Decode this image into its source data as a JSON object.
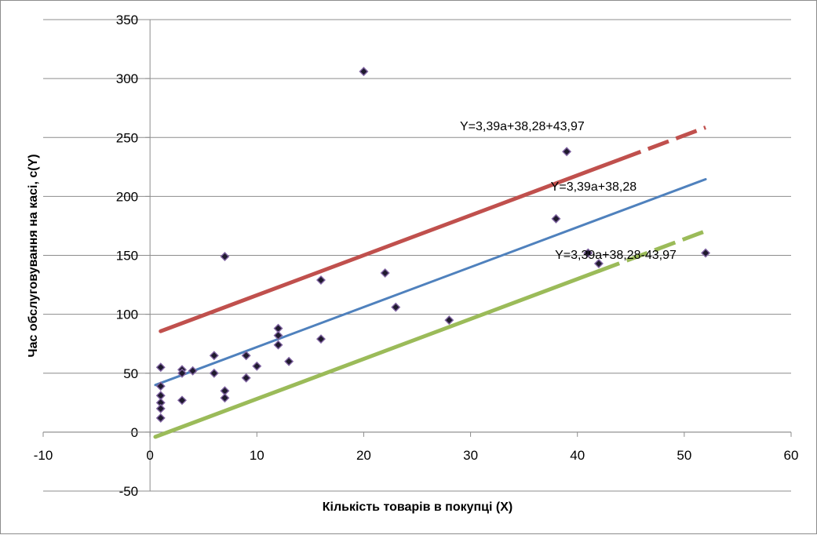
{
  "chart_data": {
    "type": "scatter",
    "xlabel": "Кількість товарів в покупці (X)",
    "ylabel": "Час обслуговування на касі, с(Y)",
    "xlim": [
      -10,
      60
    ],
    "ylim": [
      -50,
      350
    ],
    "x_ticks": [
      "-10",
      "0",
      "10",
      "20",
      "30",
      "40",
      "50",
      "60"
    ],
    "y_ticks": [
      "-50",
      "0",
      "50",
      "100",
      "150",
      "200",
      "250",
      "300",
      "350"
    ],
    "grid": "horizontal",
    "legend": "none",
    "points": [
      {
        "x": 1,
        "y": 55
      },
      {
        "x": 1,
        "y": 39
      },
      {
        "x": 1,
        "y": 31
      },
      {
        "x": 1,
        "y": 25
      },
      {
        "x": 1,
        "y": 20
      },
      {
        "x": 1,
        "y": 12
      },
      {
        "x": 3,
        "y": 53
      },
      {
        "x": 3,
        "y": 50
      },
      {
        "x": 3,
        "y": 27
      },
      {
        "x": 4,
        "y": 52
      },
      {
        "x": 6,
        "y": 65
      },
      {
        "x": 6,
        "y": 50
      },
      {
        "x": 7,
        "y": 149
      },
      {
        "x": 7,
        "y": 35
      },
      {
        "x": 7,
        "y": 29
      },
      {
        "x": 9,
        "y": 65
      },
      {
        "x": 9,
        "y": 46
      },
      {
        "x": 10,
        "y": 56
      },
      {
        "x": 12,
        "y": 88
      },
      {
        "x": 12,
        "y": 82
      },
      {
        "x": 12,
        "y": 74
      },
      {
        "x": 13,
        "y": 60
      },
      {
        "x": 16,
        "y": 129
      },
      {
        "x": 16,
        "y": 79
      },
      {
        "x": 20,
        "y": 306
      },
      {
        "x": 22,
        "y": 135
      },
      {
        "x": 23,
        "y": 106
      },
      {
        "x": 28,
        "y": 95
      },
      {
        "x": 38,
        "y": 181
      },
      {
        "x": 39,
        "y": 238
      },
      {
        "x": 41,
        "y": 152
      },
      {
        "x": 42,
        "y": 143
      },
      {
        "x": 52,
        "y": 152
      }
    ],
    "lines": [
      {
        "label": "Y=3,39a+38,28+43,97",
        "slope": 3.39,
        "intercept": 82.25,
        "x_start": 1,
        "x_end": 52,
        "solid_until": 44,
        "color": "#c0504d",
        "label_x": 29,
        "label_y": 256
      },
      {
        "label": "Y=3,39a+38,28",
        "slope": 3.39,
        "intercept": 38.28,
        "x_start": 0.5,
        "x_end": 52,
        "solid_until": 52,
        "color": "#4f81bd",
        "label_x": 37.5,
        "label_y": 205
      },
      {
        "label": "Y=3,39a+38,28-43,97",
        "slope": 3.39,
        "intercept": -5.69,
        "x_start": 0.5,
        "x_end": 52,
        "solid_until": 42,
        "color": "#9bbb59",
        "label_x": 37.9,
        "label_y": 147
      }
    ],
    "marker_color": "#1f1a2e",
    "marker_edge": "#8064a2"
  }
}
